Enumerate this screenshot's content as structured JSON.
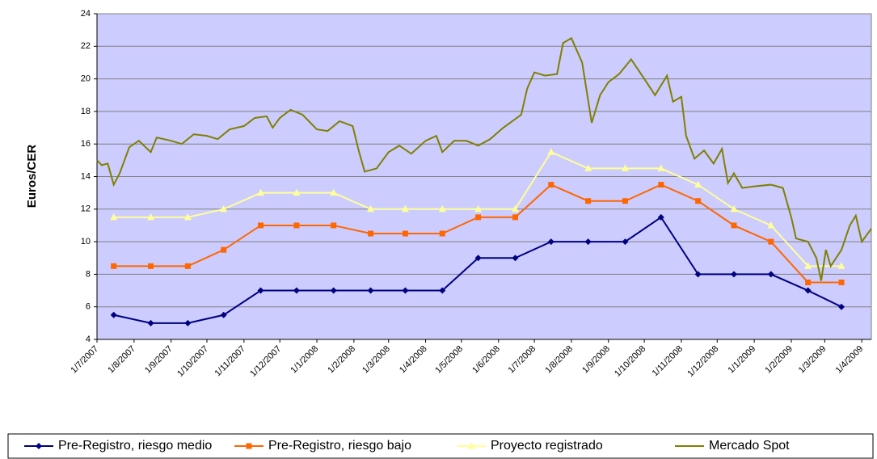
{
  "chart_data": {
    "type": "line",
    "y_label": "Euros/CER",
    "ylim": [
      4,
      24
    ],
    "yticks": [
      4,
      6,
      8,
      10,
      12,
      14,
      16,
      18,
      20,
      22,
      24
    ],
    "grid": true,
    "xlim": [
      "2007-07-01",
      "2009-04-09"
    ],
    "xticks": [
      {
        "value": "2007-07-01",
        "label": "1/7/2007"
      },
      {
        "value": "2007-08-01",
        "label": "1/8/2007"
      },
      {
        "value": "2007-09-01",
        "label": "1/9/2007"
      },
      {
        "value": "2007-10-01",
        "label": "1/10/2007"
      },
      {
        "value": "2007-11-01",
        "label": "1/11/2007"
      },
      {
        "value": "2007-12-01",
        "label": "1/12/2007"
      },
      {
        "value": "2008-01-01",
        "label": "1/1/2008"
      },
      {
        "value": "2008-02-01",
        "label": "1/2/2008"
      },
      {
        "value": "2008-03-01",
        "label": "1/3/2008"
      },
      {
        "value": "2008-04-01",
        "label": "1/4/2008"
      },
      {
        "value": "2008-05-01",
        "label": "1/5/2008"
      },
      {
        "value": "2008-06-01",
        "label": "1/6/2008"
      },
      {
        "value": "2008-07-01",
        "label": "1/7/2008"
      },
      {
        "value": "2008-08-01",
        "label": "1/8/2008"
      },
      {
        "value": "2008-09-01",
        "label": "1/9/2008"
      },
      {
        "value": "2008-10-01",
        "label": "1/10/2008"
      },
      {
        "value": "2008-11-01",
        "label": "1/11/2008"
      },
      {
        "value": "2008-12-01",
        "label": "1/12/2008"
      },
      {
        "value": "2009-01-01",
        "label": "1/1/2009"
      },
      {
        "value": "2009-02-01",
        "label": "1/2/2009"
      },
      {
        "value": "2009-03-01",
        "label": "1/3/2009"
      },
      {
        "value": "2009-04-01",
        "label": "1/4/2009"
      }
    ],
    "plot_background": "#ccccff",
    "series": [
      {
        "name": "Pre-Registro, riesgo medio",
        "color": "#000080",
        "marker": "diamond",
        "x": [
          "2007-07-15",
          "2007-08-15",
          "2007-09-15",
          "2007-10-15",
          "2007-11-15",
          "2007-12-15",
          "2008-01-15",
          "2008-02-15",
          "2008-03-15",
          "2008-04-15",
          "2008-05-15",
          "2008-06-15",
          "2008-07-15",
          "2008-08-15",
          "2008-09-15",
          "2008-10-15",
          "2008-11-15",
          "2008-12-15",
          "2009-01-15",
          "2009-02-15",
          "2009-03-15"
        ],
        "values": [
          5.5,
          5,
          5,
          5.5,
          7,
          7,
          7,
          7,
          7,
          7,
          9,
          9,
          10,
          10,
          10,
          11.5,
          8,
          8,
          8,
          7,
          6
        ]
      },
      {
        "name": "Pre-Registro, riesgo bajo",
        "color": "#ff6600",
        "marker": "square",
        "x": [
          "2007-07-15",
          "2007-08-15",
          "2007-09-15",
          "2007-10-15",
          "2007-11-15",
          "2007-12-15",
          "2008-01-15",
          "2008-02-15",
          "2008-03-15",
          "2008-04-15",
          "2008-05-15",
          "2008-06-15",
          "2008-07-15",
          "2008-08-15",
          "2008-09-15",
          "2008-10-15",
          "2008-11-15",
          "2008-12-15",
          "2009-01-15",
          "2009-02-15",
          "2009-03-15"
        ],
        "values": [
          8.5,
          8.5,
          8.5,
          9.5,
          11,
          11,
          11,
          10.5,
          10.5,
          10.5,
          11.5,
          11.5,
          13.5,
          12.5,
          12.5,
          13.5,
          12.5,
          11,
          10,
          7.5,
          7.5
        ]
      },
      {
        "name": "Proyecto registrado",
        "color": "#ffff99",
        "marker": "triangle",
        "x": [
          "2007-07-15",
          "2007-08-15",
          "2007-09-15",
          "2007-10-15",
          "2007-11-15",
          "2007-12-15",
          "2008-01-15",
          "2008-02-15",
          "2008-03-15",
          "2008-04-15",
          "2008-05-15",
          "2008-06-15",
          "2008-07-15",
          "2008-08-15",
          "2008-09-15",
          "2008-10-15",
          "2008-11-15",
          "2008-12-15",
          "2009-01-15",
          "2009-02-15",
          "2009-03-15"
        ],
        "values": [
          11.5,
          11.5,
          11.5,
          12,
          13,
          13,
          13,
          12,
          12,
          12,
          12,
          12,
          15.5,
          14.5,
          14.5,
          14.5,
          13.5,
          12,
          11,
          8.5,
          8.5
        ]
      },
      {
        "name": "Mercado Spot",
        "color": "#808000",
        "marker": "none",
        "x": [
          "2007-07-01",
          "2007-07-05",
          "2007-07-10",
          "2007-07-15",
          "2007-07-20",
          "2007-07-28",
          "2007-08-05",
          "2007-08-15",
          "2007-08-20",
          "2007-09-01",
          "2007-09-10",
          "2007-09-20",
          "2007-10-01",
          "2007-10-10",
          "2007-10-20",
          "2007-11-01",
          "2007-11-10",
          "2007-11-20",
          "2007-11-25",
          "2007-12-01",
          "2007-12-10",
          "2007-12-20",
          "2008-01-01",
          "2008-01-10",
          "2008-01-20",
          "2008-01-31",
          "2008-02-05",
          "2008-02-10",
          "2008-02-20",
          "2008-03-01",
          "2008-03-10",
          "2008-03-20",
          "2008-04-01",
          "2008-04-10",
          "2008-04-15",
          "2008-04-25",
          "2008-05-05",
          "2008-05-15",
          "2008-05-25",
          "2008-06-05",
          "2008-06-20",
          "2008-06-25",
          "2008-07-01",
          "2008-07-10",
          "2008-07-20",
          "2008-07-25",
          "2008-08-01",
          "2008-08-10",
          "2008-08-18",
          "2008-08-25",
          "2008-09-01",
          "2008-09-10",
          "2008-09-20",
          "2008-10-01",
          "2008-10-10",
          "2008-10-20",
          "2008-10-25",
          "2008-11-01",
          "2008-11-05",
          "2008-11-12",
          "2008-11-20",
          "2008-11-28",
          "2008-12-05",
          "2008-12-10",
          "2008-12-15",
          "2008-12-22",
          "2009-01-01",
          "2009-01-15",
          "2009-01-25",
          "2009-02-01",
          "2009-02-05",
          "2009-02-15",
          "2009-02-22",
          "2009-02-26",
          "2009-03-02",
          "2009-03-06",
          "2009-03-15",
          "2009-03-22",
          "2009-03-27",
          "2009-04-01",
          "2009-04-09"
        ],
        "values": [
          15,
          14.7,
          14.8,
          13.5,
          14.2,
          15.8,
          16.2,
          15.5,
          16.4,
          16.2,
          16,
          16.6,
          16.5,
          16.3,
          16.9,
          17.1,
          17.6,
          17.7,
          17,
          17.6,
          18.1,
          17.8,
          16.9,
          16.8,
          17.4,
          17.1,
          15.6,
          14.3,
          14.5,
          15.5,
          15.9,
          15.4,
          16.2,
          16.5,
          15.5,
          16.2,
          16.2,
          15.9,
          16.3,
          17,
          17.8,
          19.4,
          20.4,
          20.2,
          20.3,
          22.2,
          22.5,
          21,
          17.3,
          19,
          19.8,
          20.3,
          21.2,
          20,
          19,
          20.2,
          18.6,
          18.9,
          16.5,
          15.1,
          15.6,
          14.8,
          15.7,
          13.6,
          14.2,
          13.3,
          13.4,
          13.5,
          13.3,
          11.5,
          10.2,
          10,
          9,
          7.6,
          9.5,
          8.5,
          9.5,
          11,
          11.6,
          10,
          10.8
        ]
      }
    ]
  }
}
